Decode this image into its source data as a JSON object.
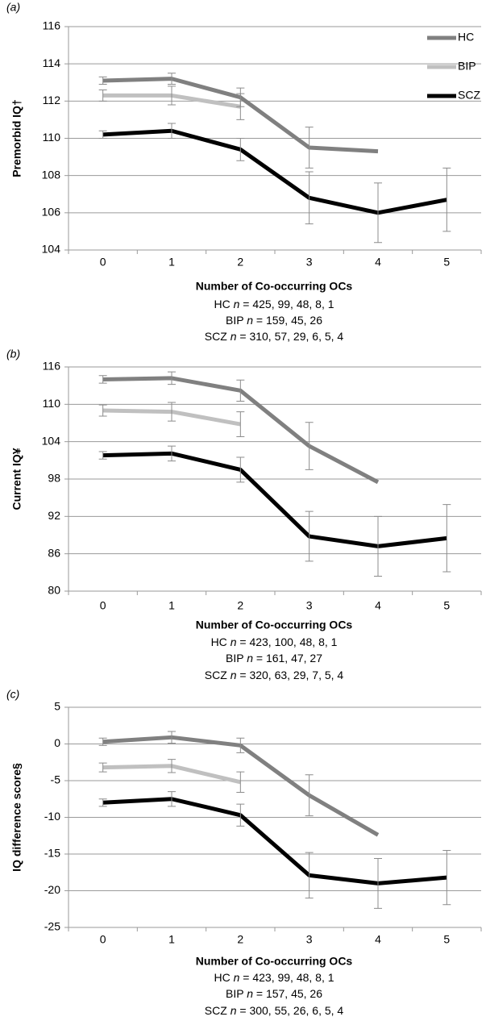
{
  "chart_data": [
    {
      "type": "line",
      "panel_label": "(a)",
      "y_label": "Premorbid IQ†",
      "x_label": "Number of Co-occurring OCs",
      "categories": [
        0,
        1,
        2,
        3,
        4,
        5
      ],
      "series": [
        {
          "name": "HC",
          "color": "#808080",
          "values": [
            113.1,
            113.2,
            112.2,
            109.5,
            109.3,
            null
          ],
          "errors": [
            0.2,
            0.3,
            0.5,
            1.1,
            null,
            null
          ]
        },
        {
          "name": "BIP",
          "color": "#c0c0c0",
          "values": [
            112.3,
            112.3,
            111.7,
            null,
            null,
            null
          ],
          "errors": [
            0.3,
            0.5,
            0.7,
            null,
            null,
            null
          ]
        },
        {
          "name": "SCZ",
          "color": "#000000",
          "values": [
            110.2,
            110.4,
            109.4,
            106.8,
            106.0,
            106.7
          ],
          "errors": [
            0.2,
            0.4,
            0.6,
            1.4,
            1.6,
            1.7
          ]
        }
      ],
      "sample_sizes": [
        {
          "group": "HC",
          "symbol": "n",
          "text": " = 425, 99, 48, 8, 1"
        },
        {
          "group": "BIP",
          "symbol": "n",
          "text": " = 159, 45, 26"
        },
        {
          "group": "SCZ",
          "symbol": "n",
          "text": " = 310, 57, 29, 6, 5, 4"
        }
      ],
      "ylim": [
        104,
        116
      ],
      "yticks": [
        104,
        106,
        108,
        110,
        112,
        114,
        116
      ],
      "grid": true,
      "legend": "upper right"
    },
    {
      "type": "line",
      "panel_label": "(b)",
      "y_label": "Current IQ¥",
      "x_label": "Number of Co-occurring OCs",
      "categories": [
        0,
        1,
        2,
        3,
        4,
        5
      ],
      "series": [
        {
          "name": "HC",
          "color": "#808080",
          "values": [
            114.0,
            114.2,
            112.2,
            103.3,
            97.5,
            null
          ],
          "errors": [
            0.6,
            1.0,
            1.7,
            3.8,
            null,
            null
          ]
        },
        {
          "name": "BIP",
          "color": "#c0c0c0",
          "values": [
            109.0,
            108.8,
            106.8,
            null,
            null,
            null
          ],
          "errors": [
            0.9,
            1.5,
            2.0,
            null,
            null,
            null
          ]
        },
        {
          "name": "SCZ",
          "color": "#000000",
          "values": [
            101.8,
            102.1,
            99.5,
            88.8,
            87.2,
            88.5
          ],
          "errors": [
            0.6,
            1.2,
            2.0,
            4.0,
            4.8,
            5.4
          ]
        }
      ],
      "sample_sizes": [
        {
          "group": "HC",
          "symbol": "n",
          "text": " = 423, 100, 48, 8, 1"
        },
        {
          "group": "BIP",
          "symbol": "n",
          "text": " = 161, 47, 27"
        },
        {
          "group": "SCZ",
          "symbol": "n",
          "text": " = 320, 63, 29, 7, 5, 4"
        }
      ],
      "ylim": [
        80,
        116
      ],
      "yticks": [
        80,
        86,
        92,
        98,
        104,
        110,
        116
      ],
      "grid": true
    },
    {
      "type": "line",
      "panel_label": "(c)",
      "y_label": "IQ difference score§",
      "x_label": "Number of Co-occurring OCs",
      "categories": [
        0,
        1,
        2,
        3,
        4,
        5
      ],
      "series": [
        {
          "name": "HC",
          "color": "#808080",
          "values": [
            0.3,
            0.9,
            -0.2,
            -7.0,
            -12.4,
            null
          ],
          "errors": [
            0.5,
            0.8,
            1.0,
            2.8,
            null,
            null
          ]
        },
        {
          "name": "BIP",
          "color": "#c0c0c0",
          "values": [
            -3.2,
            -3.0,
            -5.2,
            null,
            null,
            null
          ],
          "errors": [
            0.6,
            0.9,
            1.4,
            null,
            null,
            null
          ]
        },
        {
          "name": "SCZ",
          "color": "#000000",
          "values": [
            -8.0,
            -7.5,
            -9.7,
            -17.9,
            -19.0,
            -18.2
          ],
          "errors": [
            0.5,
            1.0,
            1.5,
            3.1,
            3.4,
            3.7
          ]
        }
      ],
      "sample_sizes": [
        {
          "group": "HC",
          "symbol": "n",
          "text": " = 423, 99, 48, 8, 1"
        },
        {
          "group": "BIP",
          "symbol": "n",
          "text": " = 157, 45, 26"
        },
        {
          "group": "SCZ",
          "symbol": "n",
          "text": " = 300, 55, 26, 6, 5, 4"
        }
      ],
      "ylim": [
        -25,
        5
      ],
      "yticks": [
        -25,
        -20,
        -15,
        -10,
        -5,
        0,
        5
      ],
      "grid": true
    }
  ]
}
